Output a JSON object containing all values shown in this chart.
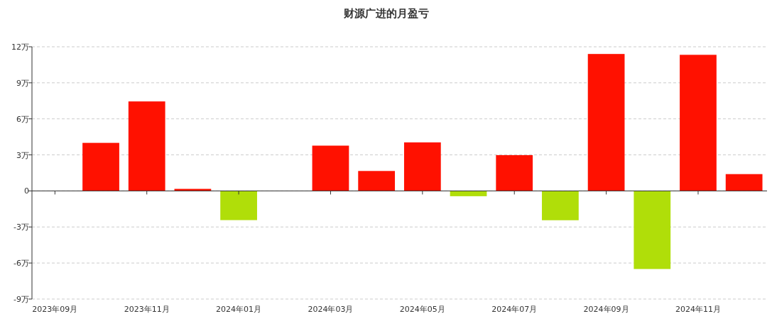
{
  "chart_data": {
    "type": "bar",
    "title": "财源广进的月盈亏",
    "categories": [
      "2023年09月",
      null,
      "2023年11月",
      null,
      "2024年01月",
      null,
      "2024年03月",
      null,
      "2024年05月",
      null,
      "2024年07月",
      null,
      "2024年09月",
      null,
      "2024年11月",
      null
    ],
    "values": [
      null,
      4.0,
      7.45,
      0.17,
      -2.43,
      null,
      3.77,
      1.66,
      4.04,
      -0.44,
      2.98,
      -2.44,
      11.4,
      -6.5,
      11.33,
      1.4
    ],
    "colors": [
      null,
      "#ff1100",
      "#ff1100",
      "#ff1100",
      "#b0de09",
      null,
      "#ff1100",
      "#ff1100",
      "#ff1100",
      "#b0de09",
      "#ff1100",
      "#b0de09",
      "#ff1100",
      "#b0de09",
      "#ff1100",
      "#ff1100"
    ],
    "ylim": [
      -9,
      12
    ],
    "yticks": [
      {
        "value": -9,
        "label": "-9万"
      },
      {
        "value": -6,
        "label": "-6万"
      },
      {
        "value": -3,
        "label": "-3万"
      },
      0,
      {
        "value": 3,
        "label": "3万"
      },
      {
        "value": 6,
        "label": "6万"
      },
      {
        "value": 9,
        "label": "9万"
      },
      {
        "value": 12,
        "label": "12万"
      }
    ],
    "grid": "y"
  }
}
